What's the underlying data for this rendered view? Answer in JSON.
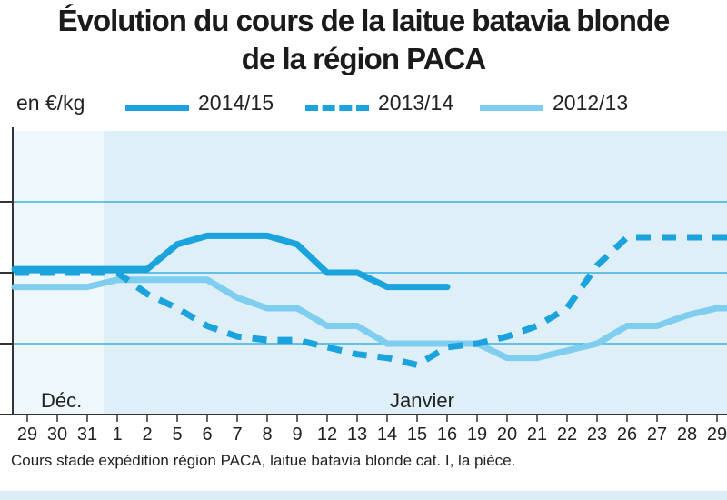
{
  "header": {
    "title_line1": "Évolution du cours de la laitue batavia blonde",
    "title_line2": "de la région PACA"
  },
  "legend": {
    "unit": "en €/kg",
    "items": [
      {
        "label": "2014/15",
        "style": "solid",
        "color": "#1aa3dc"
      },
      {
        "label": "2013/14",
        "style": "dashed",
        "color": "#1aa3dc"
      },
      {
        "label": "2012/13",
        "style": "solid",
        "color": "#7fcdef"
      }
    ]
  },
  "footnote": "Cours stade expédition région PACA, laitue batavia blonde cat. I, la pièce.",
  "colors": {
    "plot_background": "#deeff8",
    "december_band": "#eef7fc",
    "gridline": "#1aa3dc",
    "axis": "#333333"
  },
  "chart_data": {
    "type": "line",
    "categories": [
      "29",
      "30",
      "31",
      "1",
      "2",
      "5",
      "6",
      "7",
      "8",
      "9",
      "12",
      "13",
      "14",
      "15",
      "16",
      "19",
      "20",
      "21",
      "22",
      "23",
      "26",
      "27",
      "28",
      "29"
    ],
    "period_labels": [
      "Déc.",
      "Janvier"
    ],
    "ylim": [
      0,
      4
    ],
    "series": [
      {
        "name": "2014/15",
        "values": [
          2.05,
          2.05,
          2.05,
          2.05,
          2.05,
          2.4,
          2.52,
          2.52,
          2.52,
          2.4,
          2.0,
          2.0,
          1.8,
          1.8,
          1.8,
          null,
          null,
          null,
          null,
          null,
          null,
          null,
          null,
          null
        ]
      },
      {
        "name": "2013/14",
        "values": [
          2.0,
          2.0,
          2.0,
          2.0,
          1.7,
          1.5,
          1.25,
          1.1,
          1.05,
          1.05,
          0.95,
          0.85,
          0.8,
          0.7,
          0.95,
          1.0,
          1.1,
          1.25,
          1.5,
          2.1,
          2.5,
          2.5,
          2.5,
          2.5
        ]
      },
      {
        "name": "2012/13",
        "values": [
          1.8,
          1.8,
          1.8,
          1.9,
          1.9,
          1.9,
          1.9,
          1.65,
          1.5,
          1.5,
          1.25,
          1.25,
          1.0,
          1.0,
          1.0,
          1.0,
          0.8,
          0.8,
          0.9,
          1.0,
          1.25,
          1.25,
          1.4,
          1.5
        ]
      }
    ]
  }
}
